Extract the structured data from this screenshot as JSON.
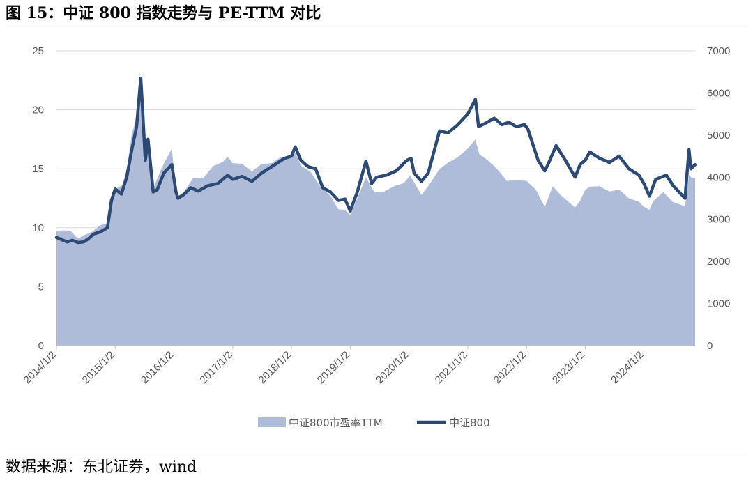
{
  "figure_title": "图 15：中证 800 指数走势与 PE-TTM 对比",
  "source_note": "数据来源：东北证券，wind",
  "colors": {
    "area": "#afbcd9",
    "line": "#2c4a74",
    "grid": "#d9d9d9",
    "axis": "#bfbfbf",
    "text": "#595959"
  },
  "chart_data": {
    "type": "area",
    "x_start": "2014-01-02",
    "x_end": "2024-11-15",
    "x_ticks": [
      "2014/1/2",
      "2015/1/2",
      "2016/1/2",
      "2017/1/2",
      "2018/1/2",
      "2019/1/2",
      "2020/1/2",
      "2021/1/2",
      "2022/1/2",
      "2023/1/2",
      "2024/1/2"
    ],
    "y_left": {
      "range": [
        0,
        25
      ],
      "ticks": [
        "0",
        "5",
        "10",
        "15",
        "20",
        "25"
      ]
    },
    "y_right": {
      "range": [
        0,
        7000
      ],
      "ticks": [
        "0",
        "1000",
        "2000",
        "3000",
        "4000",
        "5000",
        "6000",
        "7000"
      ]
    },
    "grid": true,
    "legend_position": "bottom-center",
    "series": [
      {
        "name": "中证800市盈率TTM",
        "type": "area",
        "axis": "left",
        "points": [
          [
            "2014-01-02",
            9.6
          ],
          [
            "2014-02-15",
            9.9
          ],
          [
            "2014-04-01",
            9.6
          ],
          [
            "2014-05-15",
            9.2
          ],
          [
            "2014-07-01",
            9.3
          ],
          [
            "2014-08-15",
            9.8
          ],
          [
            "2014-10-01",
            10.1
          ],
          [
            "2014-11-15",
            10.5
          ],
          [
            "2014-12-10",
            12.2
          ],
          [
            "2015-01-02",
            13.4
          ],
          [
            "2015-02-15",
            13.5
          ],
          [
            "2015-03-15",
            15.1
          ],
          [
            "2015-04-15",
            17.8
          ],
          [
            "2015-05-15",
            19.5
          ],
          [
            "2015-06-10",
            21.3
          ],
          [
            "2015-06-20",
            18.6
          ],
          [
            "2015-07-08",
            15.8
          ],
          [
            "2015-07-25",
            16.4
          ],
          [
            "2015-08-26",
            13.2
          ],
          [
            "2015-10-15",
            15.1
          ],
          [
            "2015-12-20",
            16.6
          ],
          [
            "2016-01-15",
            13.4
          ],
          [
            "2016-01-28",
            12.6
          ],
          [
            "2016-03-01",
            13.1
          ],
          [
            "2016-05-01",
            14.1
          ],
          [
            "2016-07-01",
            14.3
          ],
          [
            "2016-09-01",
            15.1
          ],
          [
            "2016-11-01",
            15.7
          ],
          [
            "2016-12-01",
            15.9
          ],
          [
            "2017-01-02",
            15.6
          ],
          [
            "2017-03-01",
            15.3
          ],
          [
            "2017-05-01",
            14.9
          ],
          [
            "2017-07-01",
            15.3
          ],
          [
            "2017-09-01",
            15.6
          ],
          [
            "2017-11-01",
            15.9
          ],
          [
            "2018-01-02",
            16.0
          ],
          [
            "2018-01-25",
            16.3
          ],
          [
            "2018-03-01",
            15.4
          ],
          [
            "2018-05-01",
            14.6
          ],
          [
            "2018-07-01",
            13.6
          ],
          [
            "2018-09-01",
            12.6
          ],
          [
            "2018-10-20",
            11.7
          ],
          [
            "2018-12-01",
            11.4
          ],
          [
            "2019-01-02",
            11.2
          ],
          [
            "2019-02-15",
            12.4
          ],
          [
            "2019-04-10",
            14.4
          ],
          [
            "2019-06-01",
            12.9
          ],
          [
            "2019-08-01",
            13.2
          ],
          [
            "2019-10-01",
            13.4
          ],
          [
            "2019-12-01",
            13.9
          ],
          [
            "2020-01-10",
            14.3
          ],
          [
            "2020-03-20",
            12.9
          ],
          [
            "2020-05-01",
            13.4
          ],
          [
            "2020-07-10",
            15.1
          ],
          [
            "2020-09-01",
            15.4
          ],
          [
            "2020-11-01",
            16.1
          ],
          [
            "2021-01-02",
            16.6
          ],
          [
            "2021-02-18",
            17.6
          ],
          [
            "2021-03-15",
            16.1
          ],
          [
            "2021-05-01",
            15.9
          ],
          [
            "2021-07-01",
            14.9
          ],
          [
            "2021-09-01",
            14.1
          ],
          [
            "2021-11-01",
            13.9
          ],
          [
            "2022-01-02",
            14.1
          ],
          [
            "2022-03-01",
            13.1
          ],
          [
            "2022-04-25",
            11.9
          ],
          [
            "2022-06-15",
            13.4
          ],
          [
            "2022-08-01",
            12.9
          ],
          [
            "2022-10-31",
            11.6
          ],
          [
            "2022-12-01",
            12.4
          ],
          [
            "2023-01-02",
            13.1
          ],
          [
            "2023-02-01",
            13.6
          ],
          [
            "2023-04-01",
            13.4
          ],
          [
            "2023-06-01",
            13.2
          ],
          [
            "2023-08-01",
            13.1
          ],
          [
            "2023-10-01",
            12.6
          ],
          [
            "2023-12-01",
            12.1
          ],
          [
            "2024-01-02",
            11.9
          ],
          [
            "2024-02-05",
            11.4
          ],
          [
            "2024-03-01",
            12.4
          ],
          [
            "2024-05-01",
            12.9
          ],
          [
            "2024-07-01",
            12.3
          ],
          [
            "2024-09-13",
            11.7
          ],
          [
            "2024-10-08",
            14.6
          ],
          [
            "2024-10-25",
            14.1
          ],
          [
            "2024-11-15",
            14.3
          ]
        ]
      },
      {
        "name": "中证800",
        "type": "line",
        "axis": "right",
        "points": [
          [
            "2014-01-02",
            2570
          ],
          [
            "2014-02-01",
            2520
          ],
          [
            "2014-03-10",
            2460
          ],
          [
            "2014-04-10",
            2500
          ],
          [
            "2014-05-15",
            2450
          ],
          [
            "2014-06-20",
            2460
          ],
          [
            "2014-07-20",
            2540
          ],
          [
            "2014-08-20",
            2650
          ],
          [
            "2014-10-01",
            2700
          ],
          [
            "2014-11-15",
            2800
          ],
          [
            "2014-12-10",
            3450
          ],
          [
            "2015-01-02",
            3720
          ],
          [
            "2015-02-10",
            3600
          ],
          [
            "2015-03-15",
            4000
          ],
          [
            "2015-04-15",
            4650
          ],
          [
            "2015-05-15",
            5200
          ],
          [
            "2015-06-10",
            6350
          ],
          [
            "2015-06-20",
            5700
          ],
          [
            "2015-07-08",
            4400
          ],
          [
            "2015-07-25",
            4900
          ],
          [
            "2015-08-26",
            3650
          ],
          [
            "2015-09-20",
            3700
          ],
          [
            "2015-11-01",
            4100
          ],
          [
            "2015-12-20",
            4300
          ],
          [
            "2016-01-15",
            3650
          ],
          [
            "2016-01-28",
            3500
          ],
          [
            "2016-03-01",
            3580
          ],
          [
            "2016-04-15",
            3750
          ],
          [
            "2016-06-01",
            3670
          ],
          [
            "2016-08-01",
            3800
          ],
          [
            "2016-10-01",
            3850
          ],
          [
            "2016-12-01",
            4050
          ],
          [
            "2017-01-02",
            3950
          ],
          [
            "2017-03-01",
            4020
          ],
          [
            "2017-05-01",
            3900
          ],
          [
            "2017-07-01",
            4100
          ],
          [
            "2017-09-01",
            4250
          ],
          [
            "2017-11-20",
            4450
          ],
          [
            "2018-01-02",
            4500
          ],
          [
            "2018-01-25",
            4720
          ],
          [
            "2018-03-01",
            4400
          ],
          [
            "2018-04-15",
            4250
          ],
          [
            "2018-06-01",
            4200
          ],
          [
            "2018-07-15",
            3750
          ],
          [
            "2018-09-01",
            3650
          ],
          [
            "2018-10-20",
            3450
          ],
          [
            "2018-12-01",
            3480
          ],
          [
            "2019-01-02",
            3200
          ],
          [
            "2019-02-15",
            3650
          ],
          [
            "2019-04-10",
            4380
          ],
          [
            "2019-05-15",
            3850
          ],
          [
            "2019-06-15",
            4000
          ],
          [
            "2019-08-15",
            4050
          ],
          [
            "2019-10-15",
            4150
          ],
          [
            "2019-12-20",
            4400
          ],
          [
            "2020-01-15",
            4450
          ],
          [
            "2020-02-03",
            4100
          ],
          [
            "2020-03-20",
            3900
          ],
          [
            "2020-05-01",
            4100
          ],
          [
            "2020-07-10",
            5100
          ],
          [
            "2020-09-01",
            5050
          ],
          [
            "2020-11-01",
            5250
          ],
          [
            "2021-01-02",
            5500
          ],
          [
            "2021-02-18",
            5850
          ],
          [
            "2021-03-10",
            5200
          ],
          [
            "2021-05-01",
            5300
          ],
          [
            "2021-06-15",
            5400
          ],
          [
            "2021-08-01",
            5250
          ],
          [
            "2021-09-15",
            5300
          ],
          [
            "2021-11-01",
            5200
          ],
          [
            "2021-12-20",
            5250
          ],
          [
            "2022-01-10",
            5150
          ],
          [
            "2022-03-15",
            4400
          ],
          [
            "2022-04-25",
            4150
          ],
          [
            "2022-05-15",
            4300
          ],
          [
            "2022-07-05",
            4750
          ],
          [
            "2022-09-01",
            4400
          ],
          [
            "2022-10-31",
            4000
          ],
          [
            "2022-12-01",
            4300
          ],
          [
            "2023-01-02",
            4400
          ],
          [
            "2023-01-30",
            4600
          ],
          [
            "2023-04-01",
            4450
          ],
          [
            "2023-06-01",
            4350
          ],
          [
            "2023-07-31",
            4500
          ],
          [
            "2023-10-01",
            4200
          ],
          [
            "2023-12-01",
            4050
          ],
          [
            "2024-01-02",
            3850
          ],
          [
            "2024-02-05",
            3550
          ],
          [
            "2024-03-15",
            3950
          ],
          [
            "2024-05-20",
            4050
          ],
          [
            "2024-07-01",
            3800
          ],
          [
            "2024-09-13",
            3500
          ],
          [
            "2024-10-08",
            4650
          ],
          [
            "2024-10-20",
            4200
          ],
          [
            "2024-11-15",
            4300
          ]
        ]
      }
    ]
  }
}
